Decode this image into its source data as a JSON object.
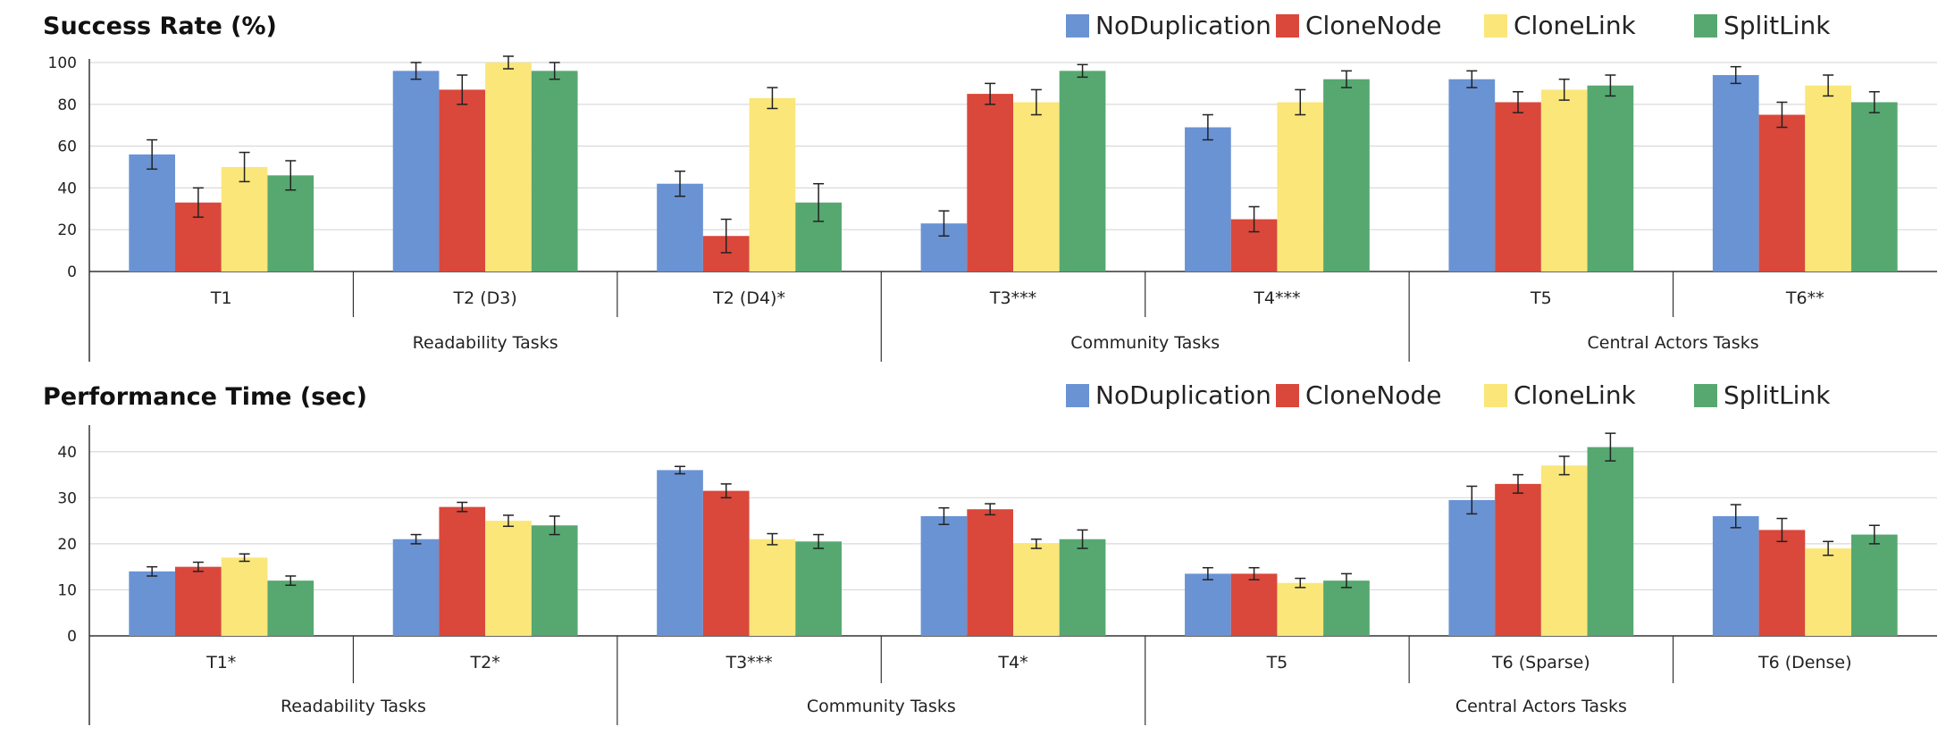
{
  "colors": {
    "NoDuplication": "#6a93d4",
    "CloneNode": "#d9483b",
    "CloneLink": "#fbe67a",
    "SplitLink": "#56a870",
    "axis": "#333333",
    "grid": "#d9d9d9"
  },
  "chart_data": [
    {
      "type": "bar",
      "title": "Success Rate (%)",
      "ylim": [
        0,
        100
      ],
      "yticks": [
        0,
        20,
        40,
        60,
        80,
        100
      ],
      "grid": true,
      "legend_position": "top-right",
      "categories": [
        "T1",
        "T2 (D3)",
        "T2 (D4)*",
        "T3***",
        "T4***",
        "T5",
        "T6**"
      ],
      "groups": [
        {
          "label": "Readability Tasks",
          "categories": [
            "T1",
            "T2 (D3)",
            "T2 (D4)*"
          ]
        },
        {
          "label": "Community Tasks",
          "categories": [
            "T3***",
            "T4***"
          ]
        },
        {
          "label": "Central Actors Tasks",
          "categories": [
            "T5",
            "T6**"
          ]
        }
      ],
      "series": [
        {
          "name": "NoDuplication",
          "values": [
            56,
            96,
            42,
            23,
            69,
            92,
            94
          ],
          "errors": [
            7,
            4,
            6,
            6,
            6,
            4,
            4
          ]
        },
        {
          "name": "CloneNode",
          "values": [
            33,
            87,
            17,
            85,
            25,
            81,
            75
          ],
          "errors": [
            7,
            7,
            8,
            5,
            6,
            5,
            6
          ]
        },
        {
          "name": "CloneLink",
          "values": [
            50,
            100,
            83,
            81,
            81,
            87,
            89
          ],
          "errors": [
            7,
            3,
            5,
            6,
            6,
            5,
            5
          ]
        },
        {
          "name": "SplitLink",
          "values": [
            46,
            96,
            33,
            96,
            92,
            89,
            81
          ],
          "errors": [
            7,
            4,
            9,
            3,
            4,
            5,
            5
          ]
        }
      ]
    },
    {
      "type": "bar",
      "title": "Performance Time (sec)",
      "ylim": [
        0,
        45
      ],
      "yticks": [
        0,
        10,
        20,
        30,
        40
      ],
      "grid": true,
      "legend_position": "top-right",
      "categories": [
        "T1*",
        "T2*",
        "T3***",
        "T4*",
        "T5",
        "T6 (Sparse)",
        "T6 (Dense)"
      ],
      "groups": [
        {
          "label": "Readability Tasks",
          "categories": [
            "T1*",
            "T2*"
          ]
        },
        {
          "label": "Community Tasks",
          "categories": [
            "T3***",
            "T4*"
          ]
        },
        {
          "label": "Central Actors Tasks",
          "categories": [
            "T5",
            "T6 (Sparse)",
            "T6 (Dense)"
          ]
        }
      ],
      "series": [
        {
          "name": "NoDuplication",
          "values": [
            14,
            21,
            36,
            26,
            13.5,
            29.5,
            26
          ],
          "errors": [
            1,
            1,
            0.8,
            1.8,
            1.3,
            3,
            2.5
          ]
        },
        {
          "name": "CloneNode",
          "values": [
            15,
            28,
            31.5,
            27.5,
            13.5,
            33,
            23
          ],
          "errors": [
            1,
            1,
            1.5,
            1.2,
            1.3,
            2,
            2.5
          ]
        },
        {
          "name": "CloneLink",
          "values": [
            17,
            25,
            21,
            20,
            11.5,
            37,
            19
          ],
          "errors": [
            0.8,
            1.2,
            1.2,
            1,
            1,
            2,
            1.5
          ]
        },
        {
          "name": "SplitLink",
          "values": [
            12,
            24,
            20.5,
            21,
            12,
            41,
            22
          ],
          "errors": [
            1,
            2,
            1.5,
            2,
            1.5,
            3,
            2
          ]
        }
      ]
    }
  ]
}
